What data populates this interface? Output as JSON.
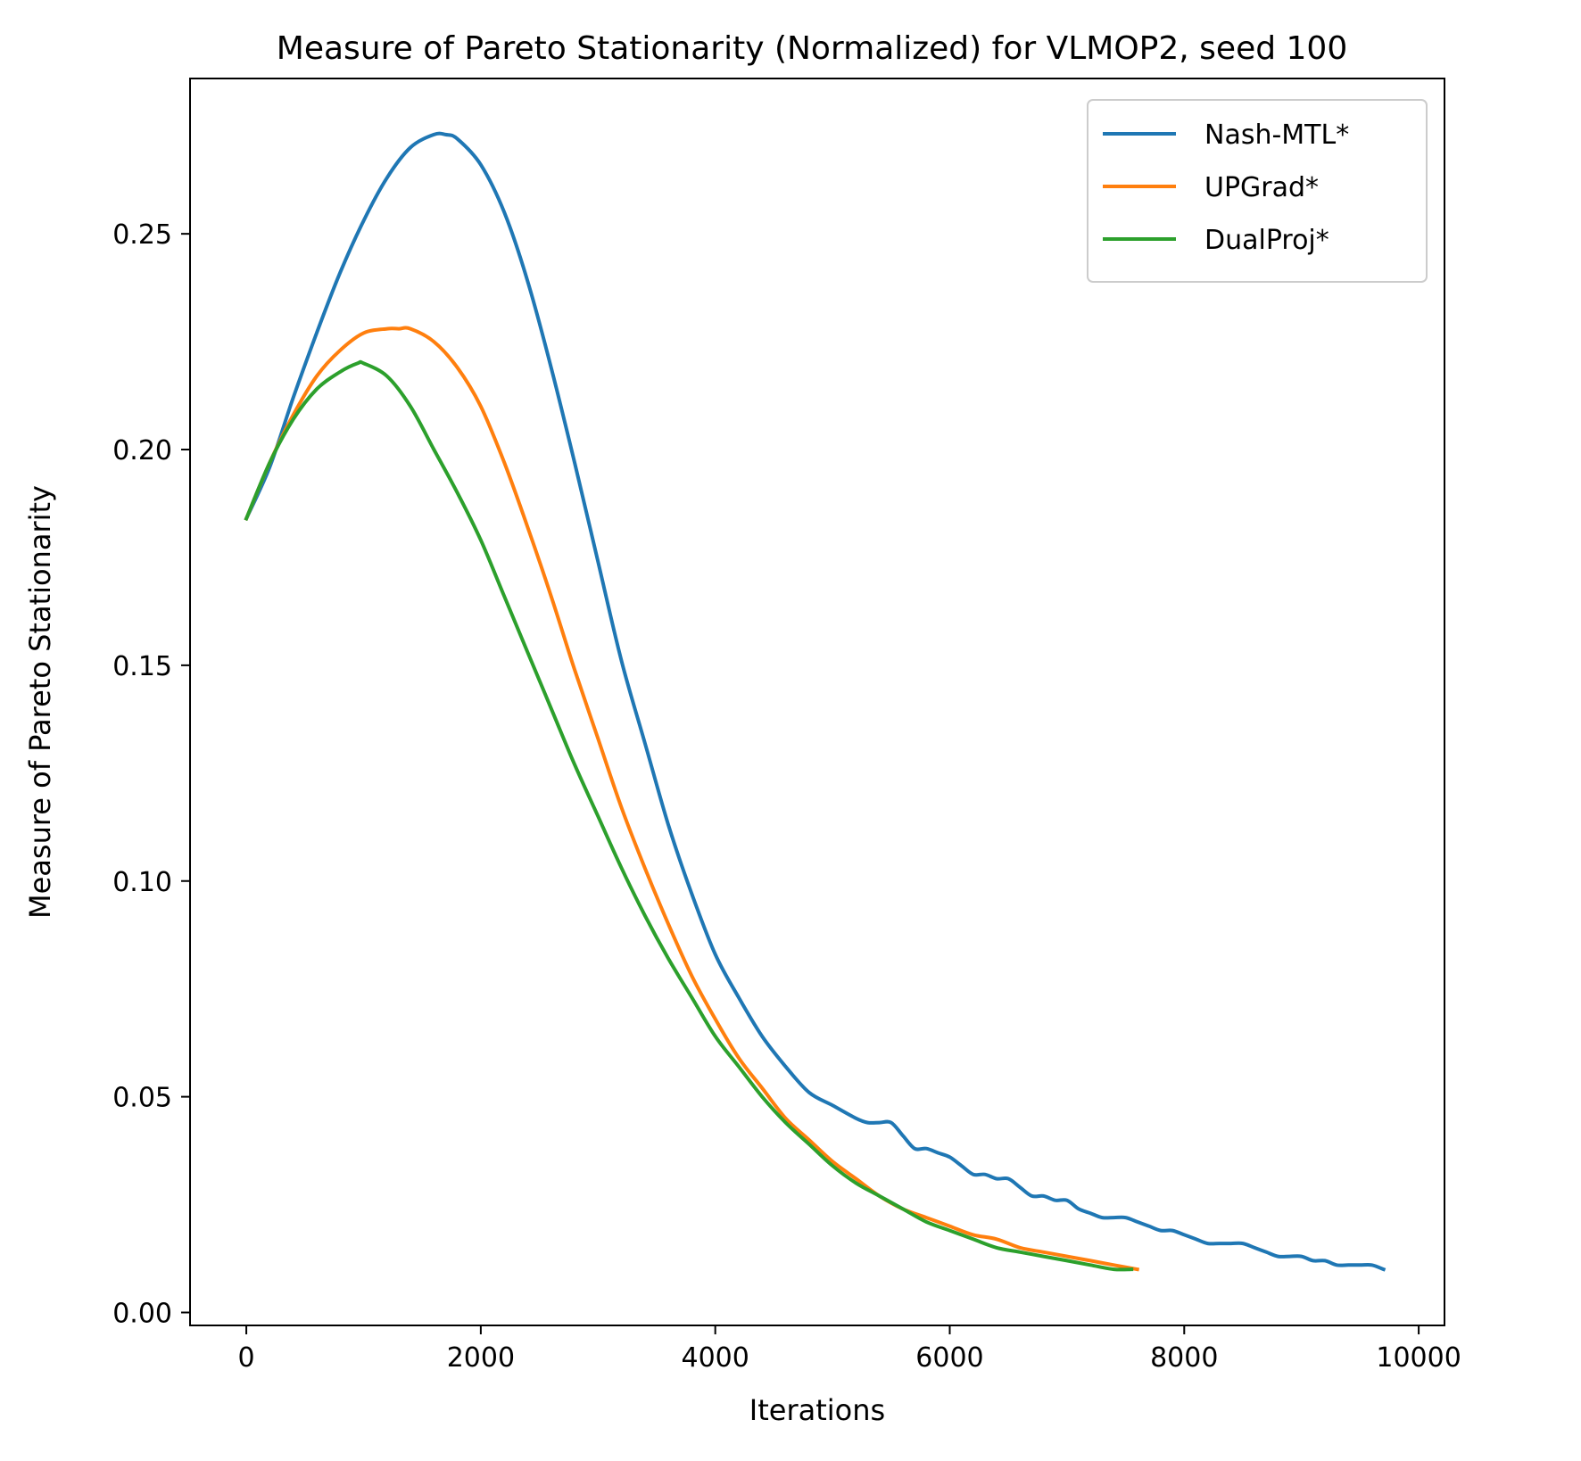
{
  "chart_data": {
    "type": "line",
    "title": "Measure of Pareto Stationarity (Normalized) for VLMOP2, seed 100",
    "xlabel": "Iterations",
    "ylabel": "Measure of Pareto Stationarity",
    "xlim": [
      -480,
      10220
    ],
    "ylim": [
      -0.003,
      0.286
    ],
    "xticks": [
      0,
      2000,
      4000,
      6000,
      8000,
      10000
    ],
    "xtick_labels": [
      "0",
      "2000",
      "4000",
      "6000",
      "8000",
      "10000"
    ],
    "yticks": [
      0.0,
      0.05,
      0.1,
      0.15,
      0.2,
      0.25
    ],
    "ytick_labels": [
      "0.00",
      "0.05",
      "0.10",
      "0.15",
      "0.20",
      "0.25"
    ],
    "grid": false,
    "legend_position": "top-right",
    "series": [
      {
        "name": "Nash-MTL*",
        "color": "#1f77b4",
        "x": [
          0,
          200,
          400,
          600,
          800,
          1000,
          1200,
          1400,
          1600,
          1700,
          1800,
          2000,
          2200,
          2400,
          2600,
          2800,
          3000,
          3200,
          3400,
          3600,
          3800,
          4000,
          4200,
          4400,
          4600,
          4800,
          5000,
          5200,
          5300,
          5400,
          5500,
          5600,
          5700,
          5800,
          5900,
          6000,
          6100,
          6200,
          6300,
          6400,
          6500,
          6600,
          6700,
          6800,
          6900,
          7000,
          7100,
          7200,
          7300,
          7400,
          7500,
          7600,
          7700,
          7800,
          7900,
          8000,
          8100,
          8200,
          8300,
          8400,
          8500,
          8600,
          8700,
          8800,
          8900,
          9000,
          9100,
          9200,
          9300,
          9400,
          9500,
          9600,
          9700
        ],
        "y": [
          0.184,
          0.196,
          0.212,
          0.227,
          0.241,
          0.253,
          0.263,
          0.27,
          0.273,
          0.273,
          0.272,
          0.266,
          0.255,
          0.239,
          0.219,
          0.197,
          0.174,
          0.151,
          0.132,
          0.113,
          0.097,
          0.083,
          0.073,
          0.064,
          0.057,
          0.051,
          0.048,
          0.045,
          0.044,
          0.044,
          0.044,
          0.041,
          0.038,
          0.038,
          0.037,
          0.036,
          0.034,
          0.032,
          0.032,
          0.031,
          0.031,
          0.029,
          0.027,
          0.027,
          0.026,
          0.026,
          0.024,
          0.023,
          0.022,
          0.022,
          0.022,
          0.021,
          0.02,
          0.019,
          0.019,
          0.018,
          0.017,
          0.016,
          0.016,
          0.016,
          0.016,
          0.015,
          0.014,
          0.013,
          0.013,
          0.013,
          0.012,
          0.012,
          0.011,
          0.011,
          0.011,
          0.011,
          0.01
        ]
      },
      {
        "name": "UPGrad*",
        "color": "#ff7f0e",
        "x": [
          0,
          200,
          400,
          600,
          800,
          1000,
          1200,
          1300,
          1400,
          1600,
          1800,
          2000,
          2200,
          2400,
          2600,
          2800,
          3000,
          3200,
          3400,
          3600,
          3800,
          4000,
          4200,
          4400,
          4600,
          4800,
          5000,
          5200,
          5400,
          5600,
          5800,
          6000,
          6200,
          6400,
          6600,
          6800,
          7000,
          7200,
          7400,
          7600
        ],
        "y": [
          0.184,
          0.197,
          0.208,
          0.217,
          0.223,
          0.227,
          0.228,
          0.228,
          0.228,
          0.225,
          0.219,
          0.21,
          0.197,
          0.182,
          0.166,
          0.149,
          0.133,
          0.117,
          0.103,
          0.09,
          0.078,
          0.068,
          0.059,
          0.052,
          0.045,
          0.04,
          0.035,
          0.031,
          0.027,
          0.024,
          0.022,
          0.02,
          0.018,
          0.017,
          0.015,
          0.014,
          0.013,
          0.012,
          0.011,
          0.01
        ]
      },
      {
        "name": "DualProj*",
        "color": "#2ca02c",
        "x": [
          0,
          200,
          400,
          600,
          800,
          950,
          1000,
          1200,
          1400,
          1600,
          1800,
          2000,
          2200,
          2400,
          2600,
          2800,
          3000,
          3200,
          3400,
          3600,
          3800,
          4000,
          4200,
          4400,
          4600,
          4800,
          5000,
          5200,
          5400,
          5600,
          5800,
          6000,
          6200,
          6400,
          6600,
          6800,
          7000,
          7200,
          7400,
          7550
        ],
        "y": [
          0.184,
          0.197,
          0.207,
          0.214,
          0.218,
          0.22,
          0.22,
          0.217,
          0.21,
          0.2,
          0.19,
          0.179,
          0.166,
          0.153,
          0.14,
          0.127,
          0.115,
          0.103,
          0.092,
          0.082,
          0.073,
          0.064,
          0.057,
          0.05,
          0.044,
          0.039,
          0.034,
          0.03,
          0.027,
          0.024,
          0.021,
          0.019,
          0.017,
          0.015,
          0.014,
          0.013,
          0.012,
          0.011,
          0.01,
          0.01
        ]
      }
    ]
  }
}
